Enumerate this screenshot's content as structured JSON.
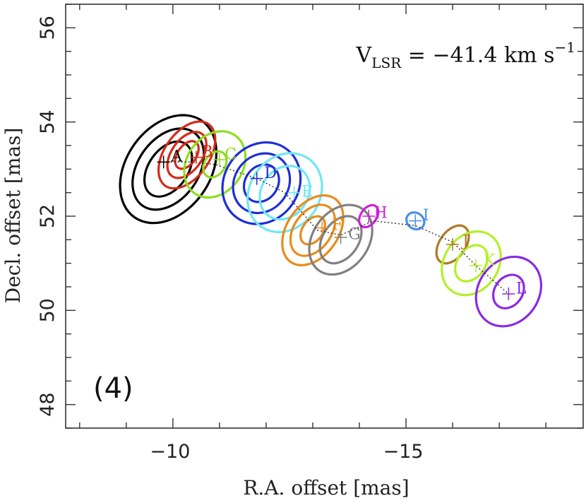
{
  "chart_data": {
    "type": "scatter",
    "title": "",
    "xlabel": "R.A. offset [mas]",
    "ylabel": "Decl. offset [mas]",
    "xlim": [
      -7.7,
      -18.8
    ],
    "ylim": [
      47.5,
      56.5
    ],
    "xticks": [
      -10,
      -15
    ],
    "xtick_labels": [
      "−10",
      "−15"
    ],
    "yticks": [
      48,
      50,
      52,
      54,
      56
    ],
    "ytick_labels": [
      "48",
      "50",
      "52",
      "54",
      "56"
    ],
    "annotation": {
      "prefix": "V",
      "sub": "LSR",
      "middle": " = −41.4 km s",
      "sup": "−1"
    },
    "panel_label": "(4)",
    "line": {
      "style": "dotted",
      "x": [
        -9.8,
        -10.4,
        -10.9,
        -11.8,
        -12.4,
        -13.1,
        -13.6,
        -14.3,
        -15.2,
        -16.0,
        -16.5,
        -17.2
      ],
      "y": [
        53.15,
        53.15,
        53.1,
        52.8,
        52.5,
        51.7,
        51.6,
        51.9,
        51.8,
        51.45,
        50.95,
        50.35
      ]
    },
    "series": [
      {
        "name": "A",
        "x": -9.8,
        "y": 53.15,
        "color": "#000000",
        "label_dx": 0.1,
        "label_dy": 0.1,
        "contours": [
          {
            "rx": 0.9,
            "ry": 1.25
          },
          {
            "rx": 0.65,
            "ry": 0.95
          },
          {
            "rx": 0.42,
            "ry": 0.65
          }
        ],
        "center": [
          -9.9,
          53.0
        ]
      },
      {
        "name": "B",
        "x": -10.5,
        "y": 53.25,
        "color": "#d42a1a",
        "label_dx": 0.05,
        "label_dy": 0.1,
        "contours": [
          {
            "rx": 0.48,
            "ry": 0.8
          },
          {
            "rx": 0.33,
            "ry": 0.55
          },
          {
            "rx": 0.2,
            "ry": 0.33
          }
        ],
        "center": [
          -10.3,
          53.3
        ]
      },
      {
        "name": "C",
        "x": -11.0,
        "y": 53.2,
        "color": "#8fdc1f",
        "label_dx": 0.05,
        "label_dy": 0.1,
        "contours": [
          {
            "rx": 0.6,
            "ry": 0.75
          },
          {
            "rx": 0.22,
            "ry": 0.3
          }
        ],
        "center": [
          -10.9,
          53.1
        ]
      },
      {
        "name": "D",
        "x": -11.8,
        "y": 52.8,
        "color": "#1e2ed8",
        "label_dx": 0.1,
        "label_dy": 0.1,
        "contours": [
          {
            "rx": 0.8,
            "ry": 0.9
          },
          {
            "rx": 0.58,
            "ry": 0.66
          },
          {
            "rx": 0.35,
            "ry": 0.42
          }
        ],
        "center": [
          -11.9,
          52.7
        ]
      },
      {
        "name": "E",
        "x": -12.6,
        "y": 52.5,
        "color": "#6fe8f2",
        "label_dx": 0.1,
        "label_dy": 0.0,
        "contours": [
          {
            "rx": 0.75,
            "ry": 0.88
          },
          {
            "rx": 0.5,
            "ry": 0.6
          }
        ],
        "center": [
          -12.4,
          52.5
        ]
      },
      {
        "name": "F",
        "x": -13.2,
        "y": 51.75,
        "color": "#e88b1a",
        "label_dx": 0.15,
        "label_dy": 0.05,
        "contours": [
          {
            "rx": 0.55,
            "ry": 0.82
          },
          {
            "rx": 0.4,
            "ry": 0.6
          },
          {
            "rx": 0.22,
            "ry": 0.33
          }
        ],
        "center": [
          -13.0,
          51.7
        ]
      },
      {
        "name": "G",
        "x": -13.6,
        "y": 51.55,
        "color": "#808080",
        "label_dx": 0.1,
        "label_dy": 0.05,
        "contours": [
          {
            "rx": 0.6,
            "ry": 0.8
          },
          {
            "rx": 0.38,
            "ry": 0.55
          }
        ],
        "center": [
          -13.6,
          51.5
        ]
      },
      {
        "name": "H",
        "x": -14.2,
        "y": 52.0,
        "color": "#cc22d8",
        "label_dx": 0.05,
        "label_dy": 0.05,
        "contours": [
          {
            "rx": 0.17,
            "ry": 0.26
          }
        ],
        "center": [
          -14.2,
          52.0
        ]
      },
      {
        "name": "I",
        "x": -15.2,
        "y": 51.9,
        "color": "#4a8fe8",
        "label_dx": 0.1,
        "label_dy": 0.1,
        "contours": [
          {
            "rx": 0.2,
            "ry": 0.17
          }
        ],
        "center": [
          -15.2,
          51.9
        ]
      },
      {
        "name": "J",
        "x": -16.0,
        "y": 51.4,
        "color": "#b07828",
        "label_dx": 0.15,
        "label_dy": 0.05,
        "contours": [
          {
            "rx": 0.28,
            "ry": 0.45
          }
        ],
        "center": [
          -16.0,
          51.4
        ]
      },
      {
        "name": "K",
        "x": -16.5,
        "y": 50.95,
        "color": "#b2f02a",
        "label_dx": 0.1,
        "label_dy": 0.1,
        "contours": [
          {
            "rx": 0.58,
            "ry": 0.72
          },
          {
            "rx": 0.3,
            "ry": 0.42
          }
        ],
        "center": [
          -16.4,
          51.0
        ]
      },
      {
        "name": "L",
        "x": -17.2,
        "y": 50.35,
        "color": "#8a2be2",
        "label_dx": 0.1,
        "label_dy": 0.1,
        "contours": [
          {
            "rx": 0.65,
            "ry": 0.78
          },
          {
            "rx": 0.3,
            "ry": 0.38
          }
        ],
        "center": [
          -17.2,
          50.4
        ]
      }
    ]
  }
}
